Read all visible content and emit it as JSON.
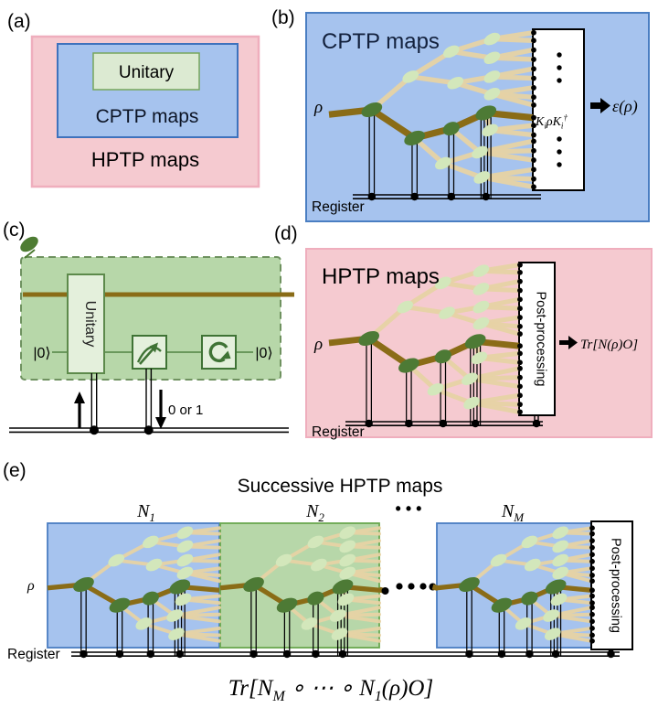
{
  "colors": {
    "blue_fill": "#a6c3ee",
    "blue_stroke": "#4a7ec2",
    "pink_fill": "#f5cad0",
    "pink_stroke": "#efaebd",
    "green_fill": "#b7d7a9",
    "green_stroke": "#6aa84f",
    "green_dash_stroke": "#6f9260",
    "lightgreen_fill": "#e4f0dc",
    "lightgreen_stroke": "#5d8a4b",
    "wire": "#8a6c17",
    "branch": "#e7d3a5",
    "node_dark": "#4d7a35",
    "node_light": "#d3e7bb",
    "icon_green": "#3f7335",
    "title_navy": "#13213d"
  },
  "panel_a": {
    "label": "(a)",
    "unitary": "Unitary",
    "cptp": "CPTP maps",
    "hptp": "HPTP maps"
  },
  "panel_b": {
    "label": "(b)",
    "title": "CPTP maps",
    "rho": "ρ",
    "kraus": {
      "k1": "K",
      "sub1": "i",
      "mid": "ρK",
      "sub2": "i",
      "sup": "†"
    },
    "output": "ε(ρ)",
    "register": "Register"
  },
  "panel_c": {
    "label": "(c)",
    "unitary": "Unitary",
    "ket_in": "|0⟩",
    "ket_out": "|0⟩",
    "result": "0 or 1"
  },
  "panel_d": {
    "label": "(d)",
    "title": "HPTP maps",
    "rho": "ρ",
    "post": "Post-processing",
    "output": "Tr[N(ρ)O]",
    "register": "Register"
  },
  "panel_e": {
    "label": "(e)",
    "title": "Successive HPTP maps",
    "rho": "ρ",
    "register": "Register",
    "post": "Post-processing",
    "n1": {
      "base": "N",
      "sub": "1"
    },
    "n2": {
      "base": "N",
      "sub": "2"
    },
    "gap_dots": "• • •",
    "nm": {
      "base": "N",
      "sub": "M"
    },
    "formula": {
      "p1": "Tr[N",
      "s1": "M",
      "p2": " ∘ ⋯ ∘ N",
      "s2": "1",
      "p3": "(ρ)O]"
    }
  }
}
